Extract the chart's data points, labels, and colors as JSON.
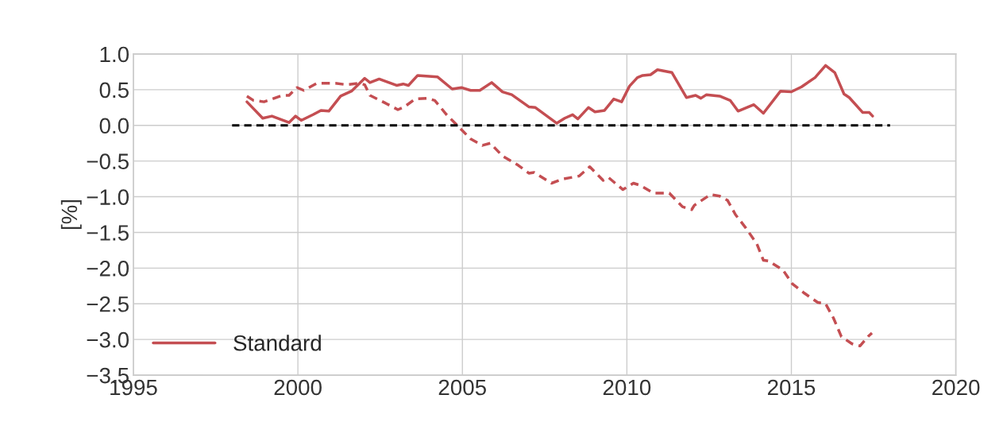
{
  "chart_data": {
    "type": "line",
    "ylabel": "[%]",
    "xlim": [
      1995,
      2020
    ],
    "xticks": [
      1995,
      2000,
      2005,
      2010,
      2015,
      2020
    ],
    "ylim": [
      -3.5,
      1.0
    ],
    "yticks": [
      {
        "value": 1.0,
        "label": "1.0"
      },
      {
        "value": 0.5,
        "label": "0.5"
      },
      {
        "value": 0.0,
        "label": "0.0"
      },
      {
        "value": -0.5,
        "label": "−0.5"
      },
      {
        "value": -1.0,
        "label": "−1.0"
      },
      {
        "value": -1.5,
        "label": "−1.5"
      },
      {
        "value": -2.0,
        "label": "−2.0"
      },
      {
        "value": -2.5,
        "label": "−2.5"
      },
      {
        "value": -3.0,
        "label": "−3.0"
      },
      {
        "value": -3.5,
        "label": "−3.5"
      }
    ],
    "grid": true,
    "legend": "bottom left",
    "series": [
      {
        "name": "Standard",
        "color": "#c44e52",
        "line_style": "solid",
        "x": [
          1998.45,
          1998.93,
          1999.21,
          1999.73,
          1999.93,
          2000.1,
          2000.46,
          2000.7,
          2000.94,
          2001.3,
          2001.63,
          2002.03,
          2002.19,
          2002.47,
          2003.0,
          2003.2,
          2003.36,
          2003.64,
          2004.24,
          2004.69,
          2004.97,
          2005.25,
          2005.53,
          2005.89,
          2006.22,
          2006.5,
          2007.02,
          2007.22,
          2007.87,
          2008.11,
          2008.35,
          2008.51,
          2008.83,
          2009.03,
          2009.32,
          2009.6,
          2009.84,
          2010.08,
          2010.32,
          2010.48,
          2010.72,
          2010.93,
          2011.37,
          2011.81,
          2012.09,
          2012.25,
          2012.42,
          2012.82,
          2013.14,
          2013.38,
          2013.86,
          2014.15,
          2014.67,
          2015.0,
          2015.31,
          2015.72,
          2016.04,
          2016.32,
          2016.6,
          2016.76,
          2017.17,
          2017.37,
          2017.47
        ],
        "values": [
          0.33,
          0.1,
          0.13,
          0.04,
          0.13,
          0.07,
          0.15,
          0.21,
          0.2,
          0.41,
          0.48,
          0.66,
          0.6,
          0.65,
          0.56,
          0.58,
          0.56,
          0.7,
          0.68,
          0.51,
          0.53,
          0.49,
          0.49,
          0.6,
          0.47,
          0.43,
          0.26,
          0.25,
          0.03,
          0.1,
          0.15,
          0.09,
          0.25,
          0.19,
          0.21,
          0.37,
          0.33,
          0.55,
          0.67,
          0.7,
          0.71,
          0.78,
          0.74,
          0.39,
          0.42,
          0.38,
          0.43,
          0.41,
          0.35,
          0.2,
          0.29,
          0.17,
          0.48,
          0.47,
          0.54,
          0.67,
          0.84,
          0.74,
          0.44,
          0.39,
          0.18,
          0.18,
          0.13
        ]
      },
      {
        "color": "#c44e52",
        "line_style": "dashed",
        "x": [
          1998.45,
          1998.65,
          1998.97,
          1999.53,
          1999.73,
          1999.97,
          2000.18,
          2000.58,
          2001.14,
          2001.47,
          2001.87,
          2002.03,
          2002.19,
          2002.67,
          2003.04,
          2003.24,
          2003.56,
          2003.92,
          2004.16,
          2004.52,
          2004.93,
          2005.25,
          2005.61,
          2005.85,
          2006.22,
          2006.7,
          2007.02,
          2007.18,
          2007.71,
          2008.07,
          2008.55,
          2008.87,
          2009.28,
          2009.44,
          2009.88,
          2010.2,
          2010.4,
          2010.81,
          2011.29,
          2011.69,
          2011.97,
          2012.05,
          2012.54,
          2012.82,
          2013.06,
          2013.3,
          2013.62,
          2013.95,
          2014.15,
          2014.31,
          2014.75,
          2015.03,
          2015.39,
          2015.8,
          2016.04,
          2016.28,
          2016.52,
          2016.84,
          2017.09,
          2017.33,
          2017.45
        ],
        "values": [
          0.41,
          0.35,
          0.33,
          0.42,
          0.42,
          0.53,
          0.49,
          0.59,
          0.59,
          0.57,
          0.59,
          0.57,
          0.42,
          0.31,
          0.22,
          0.26,
          0.37,
          0.38,
          0.35,
          0.15,
          -0.04,
          -0.19,
          -0.28,
          -0.25,
          -0.43,
          -0.56,
          -0.67,
          -0.66,
          -0.81,
          -0.75,
          -0.71,
          -0.58,
          -0.77,
          -0.73,
          -0.9,
          -0.81,
          -0.84,
          -0.95,
          -0.95,
          -1.14,
          -1.18,
          -1.12,
          -0.97,
          -0.99,
          -1.05,
          -1.25,
          -1.44,
          -1.66,
          -1.89,
          -1.9,
          -2.03,
          -2.22,
          -2.35,
          -2.48,
          -2.5,
          -2.7,
          -2.96,
          -3.06,
          -3.09,
          -2.96,
          -2.91
        ]
      },
      {
        "color": "#000000",
        "line_style": "dashed",
        "x": [
          1998,
          2018
        ],
        "values": [
          0,
          0
        ]
      }
    ]
  }
}
